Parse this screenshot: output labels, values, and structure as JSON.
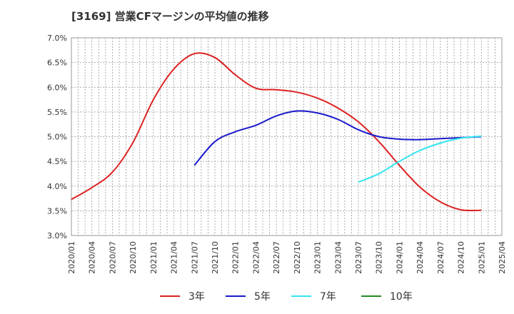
{
  "chart_data": {
    "type": "line",
    "title": "[3169]  営業CFマージンの平均値の推移",
    "xlabel": "",
    "ylabel": "",
    "ylim": [
      3.0,
      7.0
    ],
    "y_ticks": [
      "3.0%",
      "3.5%",
      "4.0%",
      "4.5%",
      "5.0%",
      "5.5%",
      "6.0%",
      "6.5%",
      "7.0%"
    ],
    "x_ticks": [
      "2020/01",
      "2020/04",
      "2020/07",
      "2020/10",
      "2021/01",
      "2021/04",
      "2021/07",
      "2021/10",
      "2022/01",
      "2022/04",
      "2022/07",
      "2022/10",
      "2023/01",
      "2023/04",
      "2023/07",
      "2023/10",
      "2024/01",
      "2024/04",
      "2024/07",
      "2024/10",
      "2025/01",
      "2025/04"
    ],
    "grid": true,
    "legend_position": "bottom",
    "series": [
      {
        "name": "3年",
        "color": "#dd2222",
        "points": [
          [
            "2020/01",
            3.73
          ],
          [
            "2020/04",
            3.97
          ],
          [
            "2020/07",
            4.28
          ],
          [
            "2020/10",
            4.88
          ],
          [
            "2021/01",
            5.75
          ],
          [
            "2021/04",
            6.37
          ],
          [
            "2021/07",
            6.68
          ],
          [
            "2021/10",
            6.6
          ],
          [
            "2022/01",
            6.25
          ],
          [
            "2022/04",
            5.98
          ],
          [
            "2022/07",
            5.95
          ],
          [
            "2022/10",
            5.9
          ],
          [
            "2023/01",
            5.78
          ],
          [
            "2023/04",
            5.58
          ],
          [
            "2023/07",
            5.3
          ],
          [
            "2023/10",
            4.9
          ],
          [
            "2024/01",
            4.42
          ],
          [
            "2024/04",
            3.98
          ],
          [
            "2024/07",
            3.68
          ],
          [
            "2024/10",
            3.52
          ],
          [
            "2025/01",
            3.51
          ]
        ]
      },
      {
        "name": "5年",
        "color": "#1a1acc",
        "points": [
          [
            "2021/07",
            4.42
          ],
          [
            "2021/10",
            4.9
          ],
          [
            "2022/01",
            5.1
          ],
          [
            "2022/04",
            5.23
          ],
          [
            "2022/07",
            5.42
          ],
          [
            "2022/10",
            5.52
          ],
          [
            "2023/01",
            5.48
          ],
          [
            "2023/04",
            5.35
          ],
          [
            "2023/07",
            5.14
          ],
          [
            "2023/10",
            5.0
          ],
          [
            "2024/01",
            4.95
          ],
          [
            "2024/04",
            4.94
          ],
          [
            "2024/07",
            4.96
          ],
          [
            "2024/10",
            4.98
          ],
          [
            "2025/01",
            5.0
          ]
        ]
      },
      {
        "name": "7年",
        "color": "#33e5f0",
        "points": [
          [
            "2023/07",
            4.08
          ],
          [
            "2023/10",
            4.25
          ],
          [
            "2024/01",
            4.5
          ],
          [
            "2024/04",
            4.72
          ],
          [
            "2024/07",
            4.87
          ],
          [
            "2024/10",
            4.97
          ],
          [
            "2025/01",
            5.01
          ]
        ]
      },
      {
        "name": "10年",
        "color": "#228822",
        "points": []
      }
    ]
  }
}
